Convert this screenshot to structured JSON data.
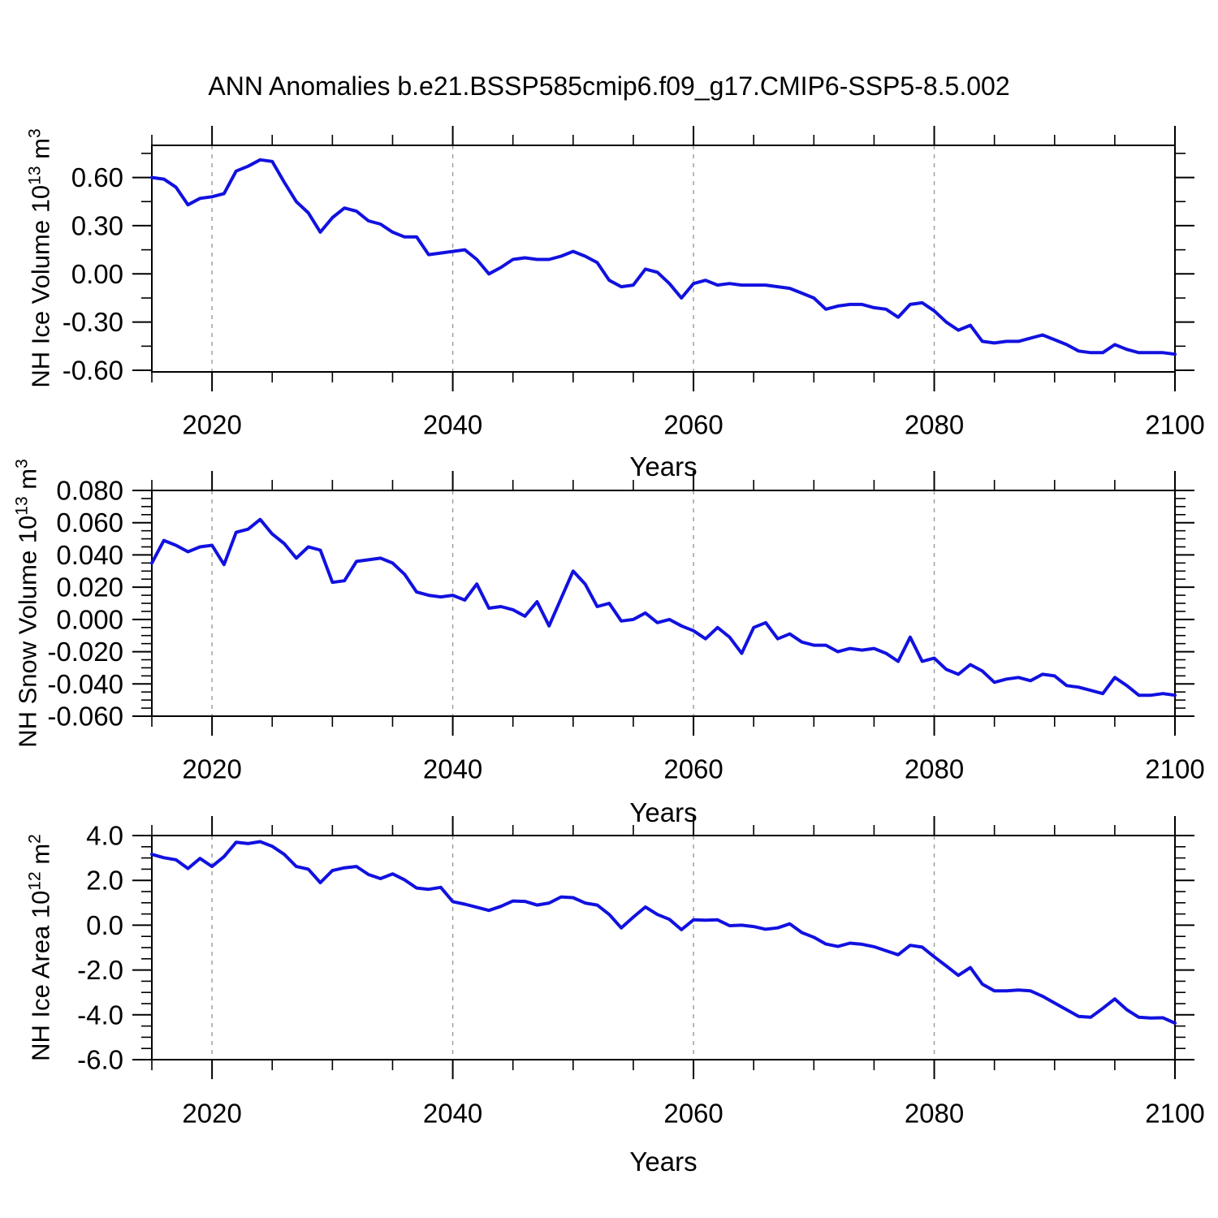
{
  "title": "ANN Anomalies b.e21.BSSP585cmip6.f09_g17.CMIP6-SSP5-8.5.002",
  "colors": {
    "line": "#1111E0",
    "grid": "#999999",
    "axis": "#000000",
    "background": "#ffffff"
  },
  "x_axis": {
    "label": "Years",
    "range": [
      2015,
      2100
    ],
    "major_ticks": [
      2020,
      2040,
      2060,
      2080,
      2100
    ],
    "major_tick_labels": [
      "2020",
      "2040",
      "2060",
      "2080",
      "2100"
    ],
    "minor_tick_step": 5,
    "grid_years": [
      2020,
      2040,
      2060,
      2080
    ]
  },
  "chart_data": [
    {
      "id": "ice-volume",
      "type": "line",
      "ylabel_text": "NH Ice Volume 10^13 m^3",
      "ylabel_rich": [
        {
          "t": "NH Ice Volume 10"
        },
        {
          "t": "13",
          "sup": true
        },
        {
          "t": " m"
        },
        {
          "t": "3",
          "sup": true
        }
      ],
      "xlabel": "Years",
      "x_start": 2015,
      "x_step": 1,
      "x_end": 2100,
      "ylim": [
        -0.61,
        0.8
      ],
      "yticks": [
        0.6,
        0.3,
        0.0,
        -0.3,
        -0.6
      ],
      "ytick_labels": [
        "0.60",
        "0.30",
        "0.00",
        "-0.30",
        "-0.60"
      ],
      "ytick_minor_step": 0.15,
      "grid": "vertical-dashed",
      "legend": "none",
      "values": [
        0.6,
        0.59,
        0.54,
        0.43,
        0.47,
        0.48,
        0.5,
        0.64,
        0.67,
        0.71,
        0.7,
        0.57,
        0.45,
        0.38,
        0.26,
        0.35,
        0.41,
        0.39,
        0.33,
        0.31,
        0.26,
        0.23,
        0.23,
        0.12,
        0.13,
        0.14,
        0.15,
        0.09,
        0.0,
        0.04,
        0.09,
        0.1,
        0.09,
        0.09,
        0.11,
        0.14,
        0.11,
        0.07,
        -0.04,
        -0.08,
        -0.07,
        0.03,
        0.01,
        -0.06,
        -0.15,
        -0.06,
        -0.04,
        -0.07,
        -0.06,
        -0.07,
        -0.07,
        -0.07,
        -0.08,
        -0.09,
        -0.12,
        -0.15,
        -0.22,
        -0.2,
        -0.19,
        -0.19,
        -0.21,
        -0.22,
        -0.27,
        -0.19,
        -0.18,
        -0.23,
        -0.3,
        -0.35,
        -0.32,
        -0.42,
        -0.43,
        -0.42,
        -0.42,
        -0.4,
        -0.38,
        -0.41,
        -0.44,
        -0.48,
        -0.49,
        -0.49,
        -0.44,
        -0.47,
        -0.49,
        -0.49,
        -0.49,
        -0.5
      ]
    },
    {
      "id": "snow-volume",
      "type": "line",
      "ylabel_text": "NH Snow Volume 10^13 m^3",
      "ylabel_rich": [
        {
          "t": "NH Snow Volume 10"
        },
        {
          "t": "13",
          "sup": true
        },
        {
          "t": " m"
        },
        {
          "t": "3",
          "sup": true
        }
      ],
      "xlabel": "Years",
      "x_start": 2015,
      "x_step": 1,
      "x_end": 2100,
      "ylim": [
        -0.06,
        0.08
      ],
      "yticks": [
        0.08,
        0.06,
        0.04,
        0.02,
        0.0,
        -0.02,
        -0.04,
        -0.06
      ],
      "ytick_labels": [
        "0.080",
        "0.060",
        "0.040",
        "0.020",
        "0.000",
        "-0.020",
        "-0.040",
        "-0.060"
      ],
      "ytick_minor_step": 0.005,
      "grid": "vertical-dashed",
      "legend": "none",
      "values": [
        0.035,
        0.049,
        0.046,
        0.042,
        0.045,
        0.046,
        0.034,
        0.054,
        0.056,
        0.062,
        0.053,
        0.047,
        0.038,
        0.045,
        0.043,
        0.023,
        0.024,
        0.036,
        0.037,
        0.038,
        0.035,
        0.028,
        0.017,
        0.015,
        0.014,
        0.015,
        0.012,
        0.022,
        0.007,
        0.008,
        0.006,
        0.002,
        0.011,
        -0.004,
        0.013,
        0.03,
        0.022,
        0.008,
        0.01,
        -0.001,
        0.0,
        0.004,
        -0.002,
        0.0,
        -0.004,
        -0.007,
        -0.012,
        -0.005,
        -0.011,
        -0.021,
        -0.005,
        -0.002,
        -0.012,
        -0.009,
        -0.014,
        -0.016,
        -0.016,
        -0.02,
        -0.018,
        -0.019,
        -0.018,
        -0.021,
        -0.026,
        -0.011,
        -0.026,
        -0.024,
        -0.031,
        -0.034,
        -0.028,
        -0.032,
        -0.039,
        -0.037,
        -0.036,
        -0.038,
        -0.034,
        -0.035,
        -0.041,
        -0.042,
        -0.044,
        -0.046,
        -0.036,
        -0.041,
        -0.047,
        -0.047,
        -0.046,
        -0.047
      ]
    },
    {
      "id": "ice-area",
      "type": "line",
      "ylabel_text": "NH Ice Area 10^12 m^2",
      "ylabel_rich": [
        {
          "t": "NH Ice Area 10"
        },
        {
          "t": "12",
          "sup": true
        },
        {
          "t": " m"
        },
        {
          "t": "2",
          "sup": true
        }
      ],
      "xlabel": "Years",
      "x_start": 2015,
      "x_step": 1,
      "x_end": 2100,
      "ylim": [
        -6.0,
        4.0
      ],
      "yticks": [
        4.0,
        2.0,
        0.0,
        -2.0,
        -4.0,
        -6.0
      ],
      "ytick_labels": [
        "4.0",
        "2.0",
        "0.0",
        "-2.0",
        "-4.0",
        "-6.0"
      ],
      "ytick_minor_step": 0.5,
      "grid": "vertical-dashed",
      "legend": "none",
      "values": [
        3.16,
        3.01,
        2.92,
        2.53,
        2.98,
        2.62,
        3.06,
        3.7,
        3.64,
        3.73,
        3.52,
        3.16,
        2.62,
        2.5,
        1.9,
        2.44,
        2.56,
        2.62,
        2.26,
        2.08,
        2.29,
        2.02,
        1.66,
        1.6,
        1.69,
        1.05,
        0.94,
        0.8,
        0.66,
        0.84,
        1.08,
        1.06,
        0.9,
        0.99,
        1.26,
        1.23,
        0.99,
        0.9,
        0.48,
        -0.12,
        0.36,
        0.81,
        0.48,
        0.26,
        -0.2,
        0.24,
        0.22,
        0.24,
        -0.02,
        0.0,
        -0.06,
        -0.18,
        -0.12,
        0.06,
        -0.33,
        -0.54,
        -0.84,
        -0.95,
        -0.8,
        -0.85,
        -0.96,
        -1.14,
        -1.32,
        -0.9,
        -0.98,
        -1.41,
        -1.82,
        -2.24,
        -1.89,
        -2.63,
        -2.93,
        -2.93,
        -2.89,
        -2.93,
        -3.17,
        -3.47,
        -3.77,
        -4.07,
        -4.11,
        -3.71,
        -3.29,
        -3.77,
        -4.11,
        -4.14,
        -4.13,
        -4.37
      ]
    }
  ]
}
